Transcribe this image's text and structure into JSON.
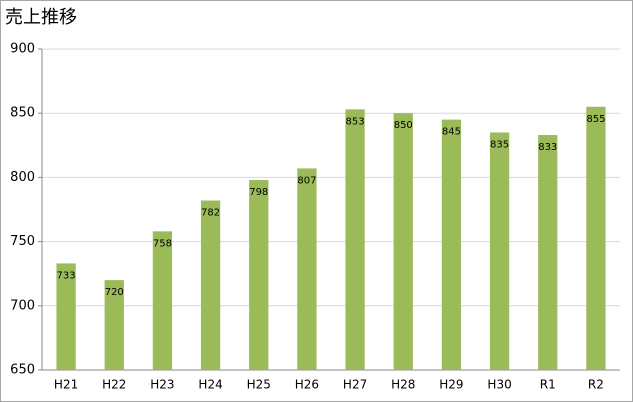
{
  "chart_data": {
    "type": "bar",
    "title": "売上推移",
    "categories": [
      "H21",
      "H22",
      "H23",
      "H24",
      "H25",
      "H26",
      "H27",
      "H28",
      "H29",
      "H30",
      "R1",
      "R2"
    ],
    "values": [
      733,
      720,
      758,
      782,
      798,
      807,
      853,
      850,
      845,
      835,
      833,
      855
    ],
    "color": "#9bbb59",
    "ylim": [
      650,
      900
    ],
    "yticks": [
      650,
      700,
      750,
      800,
      850,
      900
    ],
    "grid": true
  }
}
